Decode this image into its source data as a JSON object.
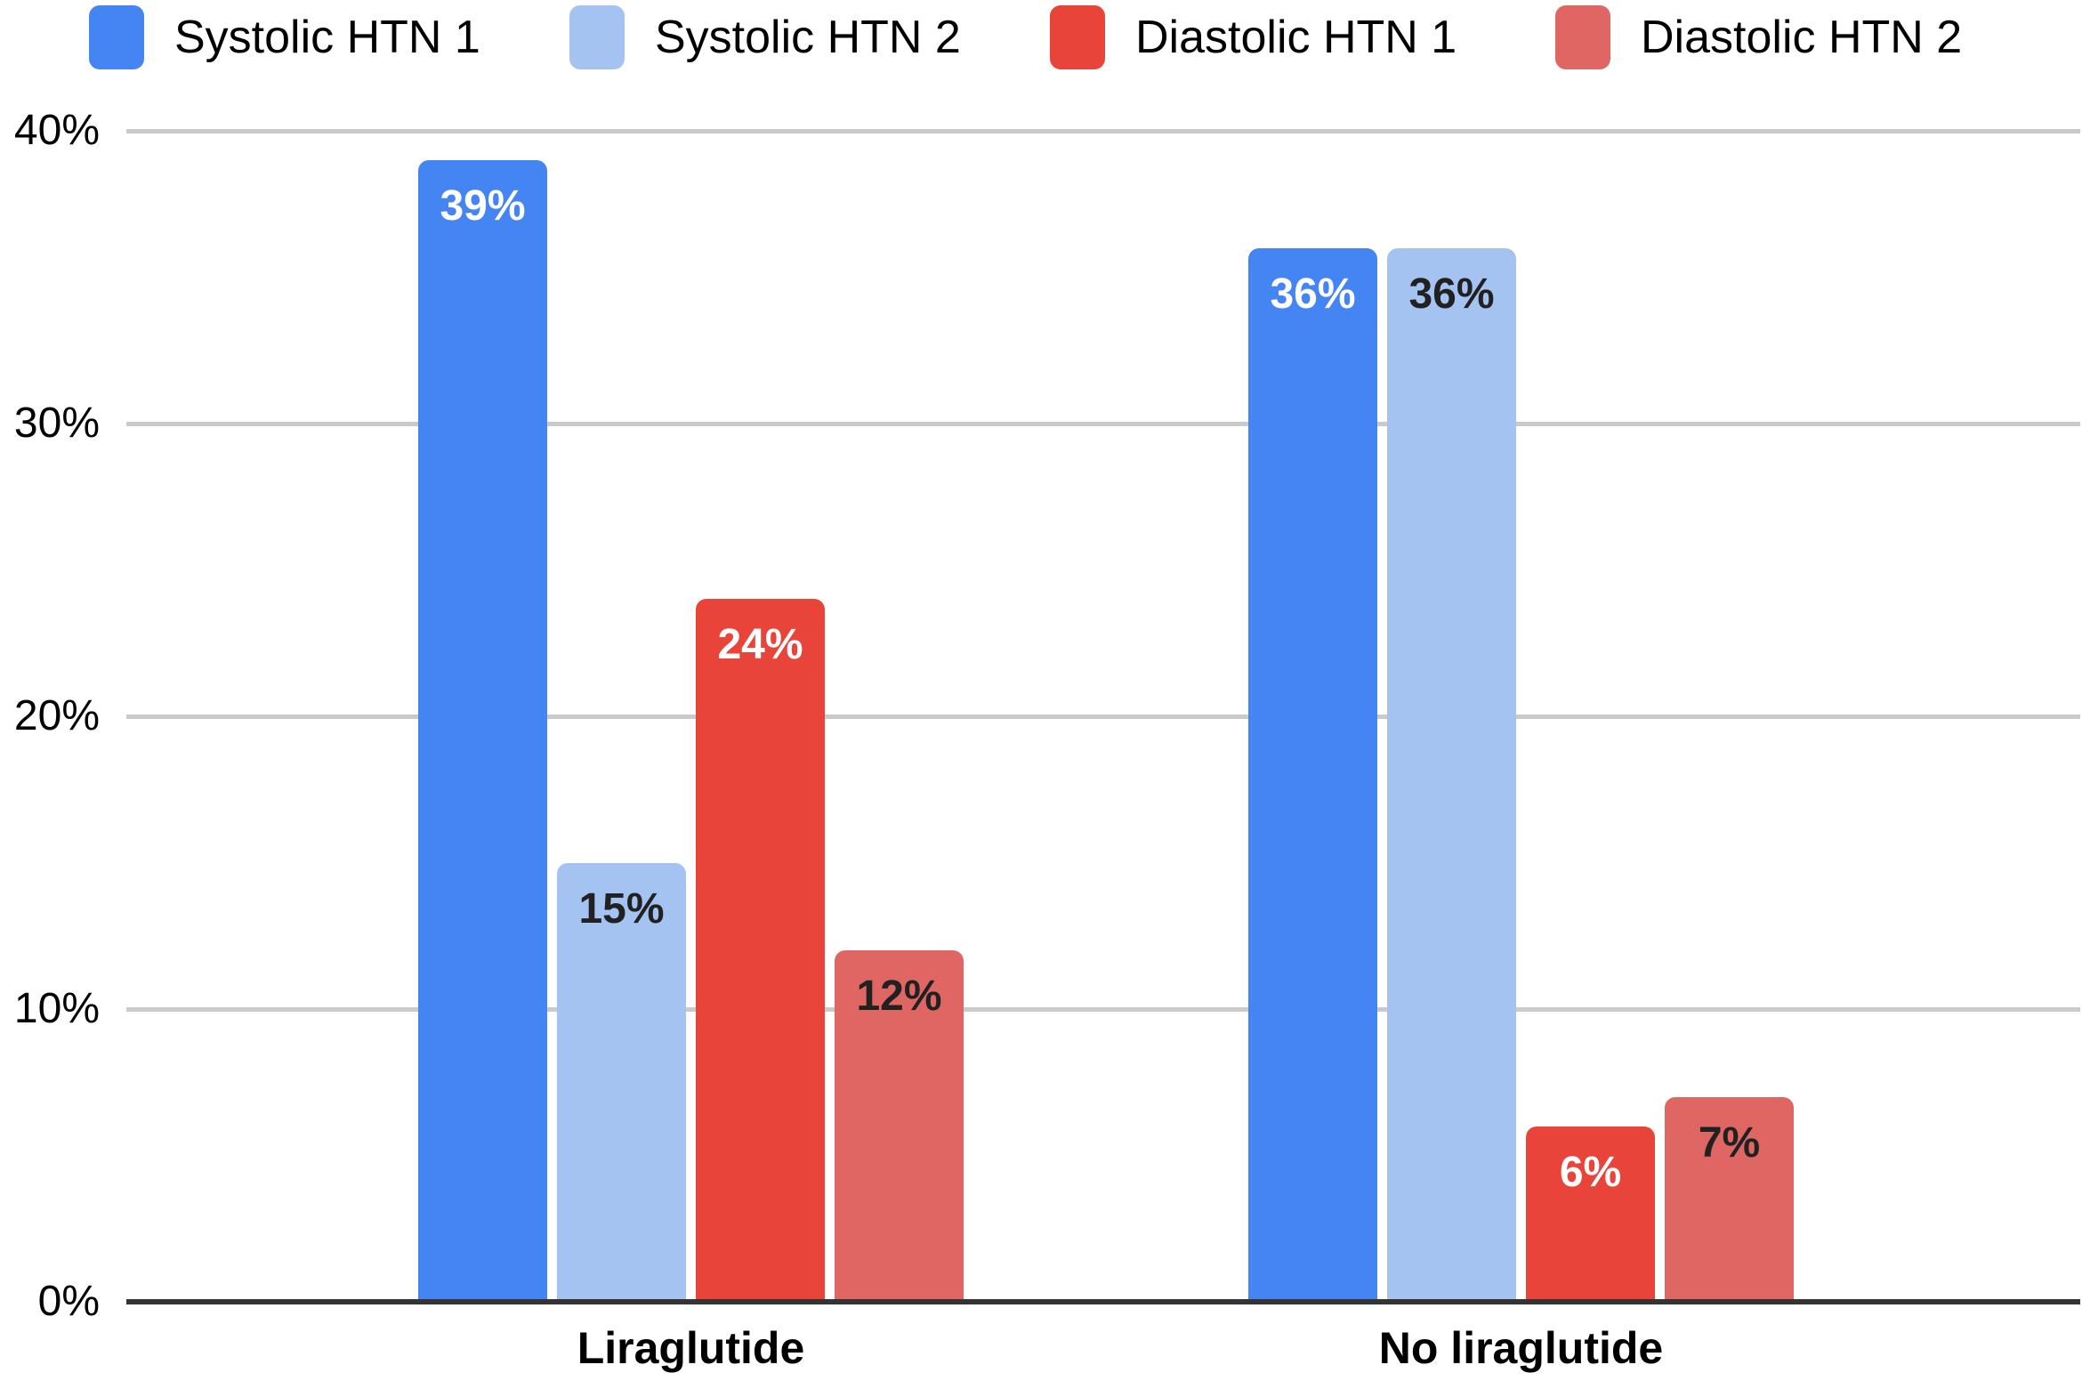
{
  "chart_data": {
    "type": "bar",
    "title": "",
    "categories": [
      "Liraglutide",
      "No liraglutide"
    ],
    "series": [
      {
        "name": "Systolic HTN 1",
        "color": "#4584F3",
        "label_color": "#FFFFFF",
        "values": [
          39,
          36
        ],
        "labels": [
          "39%",
          "36%"
        ]
      },
      {
        "name": "Systolic HTN 2",
        "color": "#A5C3F1",
        "label_color": "#212121",
        "values": [
          15,
          36
        ],
        "labels": [
          "15%",
          "36%"
        ]
      },
      {
        "name": "Diastolic HTN 1",
        "color": "#E9443A",
        "label_color": "#FFFFFF",
        "values": [
          24,
          6
        ],
        "labels": [
          "24%",
          "6%"
        ]
      },
      {
        "name": "Diastolic HTN 2",
        "color": "#DF6663",
        "label_color": "#212121",
        "values": [
          12,
          7
        ],
        "labels": [
          "12%",
          "7%"
        ]
      }
    ],
    "y_axis": {
      "tick_labels": [
        "0%",
        "10%",
        "20%",
        "30%",
        "40%"
      ],
      "tick_values": [
        0,
        10,
        20,
        30,
        40
      ],
      "min": 0,
      "max": 40
    },
    "grid": true,
    "legend_position": "top",
    "colors": {
      "gridline": "#cacaca",
      "axis_line": "#333333",
      "background": "#ffffff",
      "legend_text": "#000000",
      "tick_text": "#000000"
    }
  }
}
